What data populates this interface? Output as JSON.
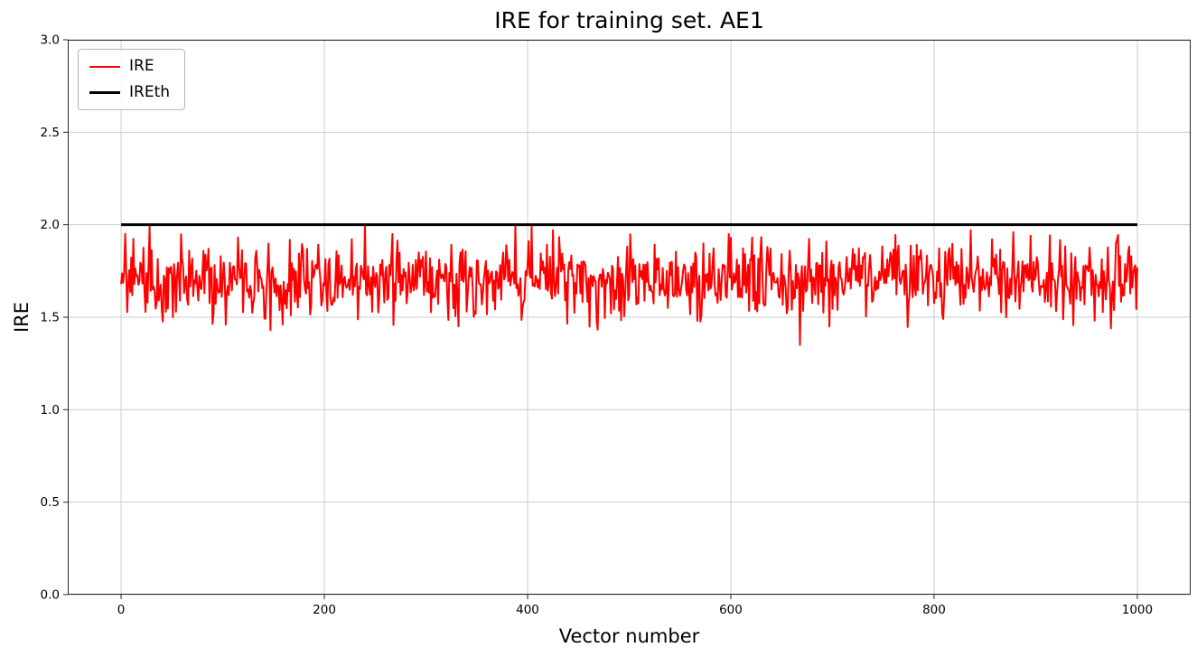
{
  "figure": {
    "title": "IRE for training set. AE1",
    "xlabel": "Vector number",
    "ylabel": "IRE"
  },
  "chart_data": {
    "type": "line",
    "title": "IRE for training set. AE1",
    "xlabel": "Vector number",
    "ylabel": "IRE",
    "xlim": [
      -52.5,
      1052.5
    ],
    "ylim": [
      0.0,
      3.0
    ],
    "xticks": {
      "values": [
        0,
        200,
        400,
        600,
        800,
        1000
      ],
      "labels": [
        "0",
        "200",
        "400",
        "600",
        "800",
        "1000"
      ]
    },
    "yticks": {
      "values": [
        0.0,
        0.5,
        1.0,
        1.5,
        2.0,
        2.5,
        3.0
      ],
      "labels": [
        "0.0",
        "0.5",
        "1.0",
        "1.5",
        "2.0",
        "2.5",
        "3.0"
      ]
    },
    "grid": {
      "visible": true,
      "color": "#cccccc"
    },
    "background": "#ffffff",
    "spine_color": "#262626",
    "legend": {
      "position": "upper-left",
      "entries": [
        {
          "label": "IRE",
          "color": "#ff0000",
          "line_width": 2.5
        },
        {
          "label": "IREth",
          "color": "#000000",
          "line_width": 3
        }
      ]
    },
    "series": [
      {
        "name": "IRE",
        "color": "#ff0000",
        "line_width": 2,
        "style": "noisy",
        "x_range": [
          0,
          1000
        ],
        "n_points": 1001,
        "mean": 1.7,
        "typical_min": 1.45,
        "typical_max": 1.95,
        "observed_min": 1.35,
        "observed_max": 2.0,
        "seed": 20240601,
        "noise_base": 0.05,
        "noise_span": 0.23,
        "clamp": [
          1.4,
          1.985
        ],
        "notable_points": [
          {
            "x": 28,
            "y": 1.99
          },
          {
            "x": 103,
            "y": 1.46
          },
          {
            "x": 147,
            "y": 1.43
          },
          {
            "x": 240,
            "y": 2.0
          },
          {
            "x": 332,
            "y": 1.45
          },
          {
            "x": 388,
            "y": 2.0
          },
          {
            "x": 404,
            "y": 1.99
          },
          {
            "x": 425,
            "y": 1.97
          },
          {
            "x": 598,
            "y": 1.95
          },
          {
            "x": 600,
            "y": 1.93
          },
          {
            "x": 668,
            "y": 1.35
          },
          {
            "x": 836,
            "y": 1.97
          },
          {
            "x": 878,
            "y": 1.96
          },
          {
            "x": 895,
            "y": 1.94
          },
          {
            "x": 974,
            "y": 1.44
          }
        ]
      },
      {
        "name": "IREth",
        "color": "#000000",
        "line_width": 3,
        "style": "constant",
        "x_range": [
          0,
          1000
        ],
        "value": 2.0
      }
    ]
  }
}
